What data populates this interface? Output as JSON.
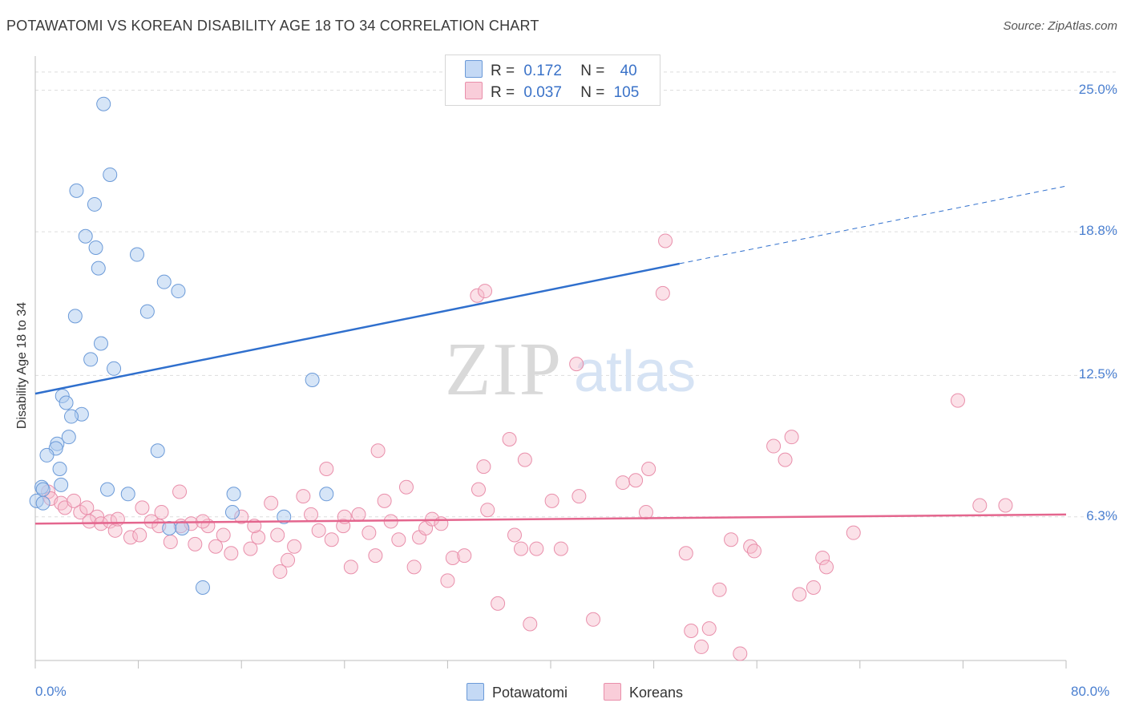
{
  "header": {
    "title": "POTAWATOMI VS KOREAN DISABILITY AGE 18 TO 34 CORRELATION CHART",
    "source": "Source: ZipAtlas.com"
  },
  "watermark": {
    "zip": "ZIP",
    "atlas": "atlas"
  },
  "legend": {
    "rows": [
      {
        "r_label": "R =",
        "r_value": "0.172",
        "n_label": "N =",
        "n_value": "40"
      },
      {
        "r_label": "R =",
        "r_value": "0.037",
        "n_label": "N =",
        "n_value": "105"
      }
    ]
  },
  "bottom_legend": {
    "series1": "Potawatomi",
    "series2": "Koreans"
  },
  "colors": {
    "potawatomi_fill": "#aecbf0",
    "potawatomi_stroke": "#6b9ad8",
    "potawatomi_line": "#2f6fcd",
    "koreans_fill": "#f7bccd",
    "koreans_stroke": "#e98fab",
    "koreans_line": "#e4668e",
    "grid": "#dddddd",
    "tick_text": "#4a7fd0"
  },
  "chart_data": {
    "type": "scatter",
    "title": "POTAWATOMI VS KOREAN DISABILITY AGE 18 TO 34 CORRELATION CHART",
    "xlabel": "",
    "ylabel": "Disability Age 18 to 34",
    "xlim": [
      0,
      80
    ],
    "ylim": [
      0,
      26.5
    ],
    "y_ticks": [
      6.3,
      12.5,
      18.8,
      25.0
    ],
    "y_tick_labels": [
      "6.3%",
      "12.5%",
      "18.8%",
      "25.0%"
    ],
    "x_tick_labels": [
      "0.0%",
      "80.0%"
    ],
    "x_minor_ticks": [
      0,
      8,
      16,
      24,
      32,
      40,
      48,
      56,
      64,
      72,
      80
    ],
    "series": [
      {
        "name": "Potawatomi",
        "r": 0.172,
        "n": 40,
        "trend": {
          "x0": 0,
          "y0": 11.7,
          "x1": 50,
          "y1": 17.4,
          "x_dash_end": 80,
          "y_dash_end": 20.8
        },
        "points": [
          [
            5.3,
            24.4
          ],
          [
            5.8,
            21.3
          ],
          [
            3.2,
            20.6
          ],
          [
            4.6,
            20.0
          ],
          [
            3.9,
            18.6
          ],
          [
            4.7,
            18.1
          ],
          [
            7.9,
            17.8
          ],
          [
            4.9,
            17.2
          ],
          [
            10.0,
            16.6
          ],
          [
            11.1,
            16.2
          ],
          [
            8.7,
            15.3
          ],
          [
            3.1,
            15.1
          ],
          [
            5.1,
            13.9
          ],
          [
            4.3,
            13.2
          ],
          [
            6.1,
            12.8
          ],
          [
            21.5,
            12.3
          ],
          [
            2.1,
            11.6
          ],
          [
            2.4,
            11.3
          ],
          [
            3.6,
            10.8
          ],
          [
            2.8,
            10.7
          ],
          [
            2.6,
            9.8
          ],
          [
            1.7,
            9.5
          ],
          [
            1.6,
            9.3
          ],
          [
            0.9,
            9.0
          ],
          [
            9.5,
            9.2
          ],
          [
            1.9,
            8.4
          ],
          [
            2.0,
            7.7
          ],
          [
            0.5,
            7.6
          ],
          [
            5.6,
            7.5
          ],
          [
            0.6,
            7.5
          ],
          [
            7.2,
            7.3
          ],
          [
            22.6,
            7.3
          ],
          [
            0.1,
            7.0
          ],
          [
            0.6,
            6.9
          ],
          [
            15.3,
            6.5
          ],
          [
            11.4,
            5.8
          ],
          [
            10.4,
            5.8
          ],
          [
            13.0,
            3.2
          ],
          [
            15.4,
            7.3
          ],
          [
            19.3,
            6.3
          ]
        ]
      },
      {
        "name": "Koreans",
        "r": 0.037,
        "n": 105,
        "trend": {
          "x0": 0,
          "y0": 6.0,
          "x1": 80,
          "y1": 6.4
        },
        "points": [
          [
            1.0,
            7.4
          ],
          [
            1.2,
            7.1
          ],
          [
            2.0,
            6.9
          ],
          [
            2.3,
            6.7
          ],
          [
            3.5,
            6.5
          ],
          [
            4.8,
            6.3
          ],
          [
            4.2,
            6.1
          ],
          [
            5.1,
            6.0
          ],
          [
            5.8,
            6.1
          ],
          [
            6.2,
            5.7
          ],
          [
            7.4,
            5.4
          ],
          [
            8.1,
            5.5
          ],
          [
            8.3,
            6.7
          ],
          [
            9.0,
            6.1
          ],
          [
            9.6,
            5.9
          ],
          [
            10.5,
            5.2
          ],
          [
            11.3,
            5.9
          ],
          [
            12.1,
            6.0
          ],
          [
            12.4,
            5.1
          ],
          [
            13.4,
            5.9
          ],
          [
            14.0,
            5.0
          ],
          [
            14.6,
            5.5
          ],
          [
            15.2,
            4.7
          ],
          [
            16.0,
            6.3
          ],
          [
            16.7,
            4.9
          ],
          [
            17.3,
            5.4
          ],
          [
            18.3,
            6.9
          ],
          [
            18.8,
            5.5
          ],
          [
            19.0,
            3.9
          ],
          [
            19.6,
            4.4
          ],
          [
            20.1,
            5.0
          ],
          [
            20.8,
            7.2
          ],
          [
            21.4,
            6.4
          ],
          [
            22.0,
            5.7
          ],
          [
            22.6,
            8.4
          ],
          [
            23.0,
            5.3
          ],
          [
            23.9,
            5.9
          ],
          [
            24.5,
            4.1
          ],
          [
            25.1,
            6.4
          ],
          [
            25.9,
            5.6
          ],
          [
            26.4,
            4.6
          ],
          [
            27.1,
            7.0
          ],
          [
            27.6,
            6.1
          ],
          [
            28.2,
            5.3
          ],
          [
            28.8,
            7.6
          ],
          [
            29.4,
            4.1
          ],
          [
            29.8,
            5.4
          ],
          [
            30.3,
            5.8
          ],
          [
            30.8,
            6.2
          ],
          [
            31.5,
            6.0
          ],
          [
            32.0,
            3.5
          ],
          [
            32.4,
            4.5
          ],
          [
            33.3,
            4.6
          ],
          [
            34.4,
            7.5
          ],
          [
            34.8,
            8.5
          ],
          [
            34.3,
            16.0
          ],
          [
            34.9,
            16.2
          ],
          [
            35.1,
            6.6
          ],
          [
            35.9,
            2.5
          ],
          [
            36.8,
            9.7
          ],
          [
            37.2,
            5.5
          ],
          [
            37.7,
            4.9
          ],
          [
            38.4,
            1.6
          ],
          [
            38.9,
            4.9
          ],
          [
            40.1,
            7.0
          ],
          [
            40.8,
            4.9
          ],
          [
            42.0,
            13.0
          ],
          [
            42.2,
            7.2
          ],
          [
            43.3,
            1.8
          ],
          [
            45.6,
            7.8
          ],
          [
            46.6,
            7.9
          ],
          [
            47.4,
            6.5
          ],
          [
            47.6,
            8.4
          ],
          [
            48.7,
            16.1
          ],
          [
            48.9,
            18.4
          ],
          [
            50.5,
            4.7
          ],
          [
            50.9,
            1.3
          ],
          [
            51.7,
            0.6
          ],
          [
            52.3,
            1.4
          ],
          [
            53.1,
            3.1
          ],
          [
            54.0,
            5.3
          ],
          [
            54.7,
            0.3
          ],
          [
            55.5,
            5.0
          ],
          [
            55.8,
            4.8
          ],
          [
            57.3,
            9.4
          ],
          [
            58.2,
            8.8
          ],
          [
            58.7,
            9.8
          ],
          [
            59.3,
            2.9
          ],
          [
            60.4,
            3.2
          ],
          [
            61.1,
            4.5
          ],
          [
            61.4,
            4.1
          ],
          [
            63.5,
            5.6
          ],
          [
            71.6,
            11.4
          ],
          [
            73.3,
            6.8
          ],
          [
            75.3,
            6.8
          ],
          [
            26.6,
            9.2
          ],
          [
            38.0,
            8.8
          ],
          [
            11.2,
            7.4
          ],
          [
            4.0,
            6.7
          ],
          [
            9.8,
            6.5
          ],
          [
            6.4,
            6.2
          ],
          [
            13.0,
            6.1
          ],
          [
            3.0,
            7.0
          ],
          [
            17.0,
            5.9
          ],
          [
            24.0,
            6.3
          ]
        ]
      }
    ]
  }
}
